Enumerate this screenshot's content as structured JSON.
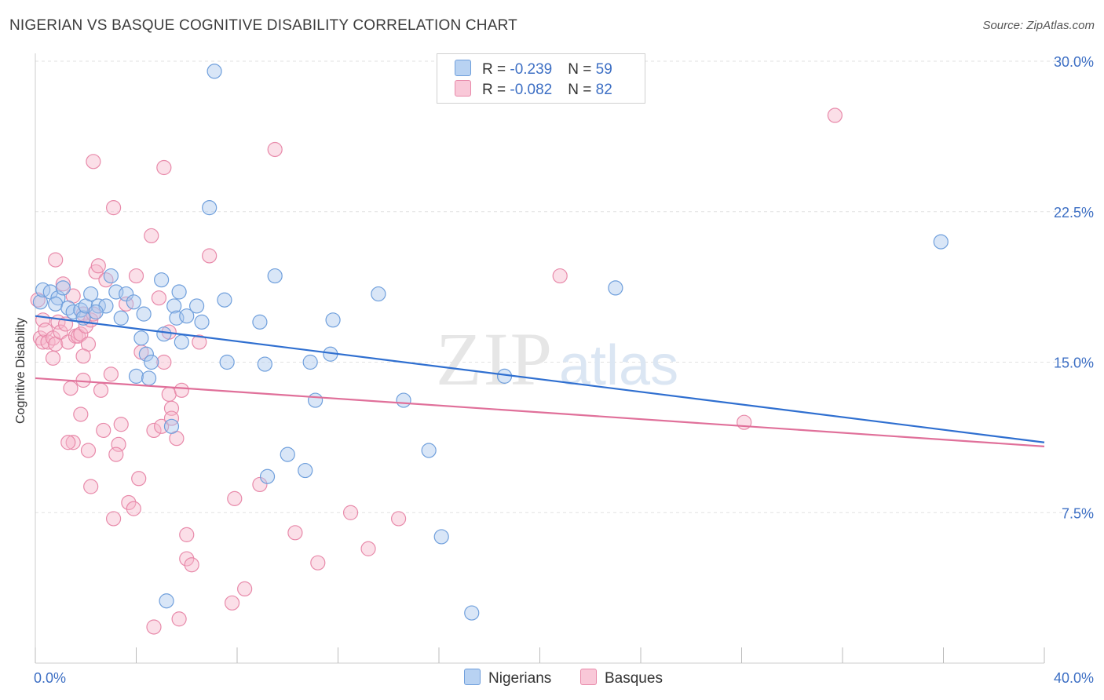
{
  "title": "NIGERIAN VS BASQUE COGNITIVE DISABILITY CORRELATION CHART",
  "source": "Source: ZipAtlas.com",
  "watermark": {
    "zip": "ZIP",
    "atlas": "atlas"
  },
  "colors": {
    "nigerians_fill": "#aac8ee",
    "nigerians_stroke": "#6f9fdc",
    "nigerians_line": "#2f6fd0",
    "basques_fill": "#f6b8cc",
    "basques_stroke": "#e88aaa",
    "basques_line": "#e0709a",
    "tick_label": "#3d6fc4",
    "grid": "#e2e2e2"
  },
  "legend": {
    "rows": [
      {
        "r_label": "R = ",
        "r_value": "-0.239",
        "n_label": "N = ",
        "n_value": "59"
      },
      {
        "r_label": "R = ",
        "r_value": "-0.082",
        "n_label": "N = ",
        "n_value": "82"
      }
    ]
  },
  "chart_data": {
    "type": "scatter",
    "title": "NIGERIAN VS BASQUE COGNITIVE DISABILITY CORRELATION CHART",
    "xlabel": "",
    "ylabel": "Cognitive Disability",
    "xlim": [
      0,
      40
    ],
    "ylim": [
      0,
      30
    ],
    "x_tick_labels": [
      "0.0%",
      "40.0%"
    ],
    "y_ticks": [
      7.5,
      15.0,
      22.5,
      30.0
    ],
    "y_tick_labels": [
      "7.5%",
      "15.0%",
      "22.5%",
      "30.0%"
    ],
    "grid": true,
    "legend_position": "top-center",
    "series": [
      {
        "name": "Nigerians",
        "R": -0.239,
        "N": 59,
        "trend": {
          "x": [
            0,
            40
          ],
          "y": [
            17.3,
            11.0
          ]
        },
        "points": [
          [
            0.2,
            18.0
          ],
          [
            0.3,
            18.6
          ],
          [
            0.6,
            18.5
          ],
          [
            0.9,
            18.2
          ],
          [
            0.8,
            17.9
          ],
          [
            1.3,
            17.7
          ],
          [
            1.5,
            17.5
          ],
          [
            1.8,
            17.6
          ],
          [
            1.9,
            17.2
          ],
          [
            1.1,
            18.7
          ],
          [
            2.0,
            17.8
          ],
          [
            2.2,
            18.4
          ],
          [
            2.5,
            17.8
          ],
          [
            2.8,
            17.8
          ],
          [
            2.4,
            17.5
          ],
          [
            3.2,
            18.5
          ],
          [
            3.4,
            17.2
          ],
          [
            3.0,
            19.3
          ],
          [
            3.6,
            18.4
          ],
          [
            3.9,
            18.0
          ],
          [
            4.3,
            17.4
          ],
          [
            4.4,
            15.4
          ],
          [
            4.2,
            16.2
          ],
          [
            4.6,
            15.0
          ],
          [
            4.0,
            14.3
          ],
          [
            4.5,
            14.2
          ],
          [
            5.0,
            19.1
          ],
          [
            5.1,
            16.4
          ],
          [
            5.7,
            18.5
          ],
          [
            5.5,
            17.8
          ],
          [
            5.6,
            17.2
          ],
          [
            5.8,
            16.0
          ],
          [
            6.0,
            17.3
          ],
          [
            6.4,
            17.8
          ],
          [
            6.6,
            17.0
          ],
          [
            6.9,
            22.7
          ],
          [
            7.1,
            29.5
          ],
          [
            7.5,
            18.1
          ],
          [
            7.6,
            15.0
          ],
          [
            8.9,
            17.0
          ],
          [
            9.1,
            14.9
          ],
          [
            9.5,
            19.3
          ],
          [
            10.0,
            10.4
          ],
          [
            10.7,
            9.6
          ],
          [
            10.9,
            15.0
          ],
          [
            11.1,
            13.1
          ],
          [
            11.7,
            15.4
          ],
          [
            11.8,
            17.1
          ],
          [
            13.6,
            18.4
          ],
          [
            14.6,
            13.1
          ],
          [
            15.6,
            10.6
          ],
          [
            16.1,
            6.3
          ],
          [
            17.3,
            2.5
          ],
          [
            18.6,
            14.3
          ],
          [
            23.0,
            18.7
          ],
          [
            35.9,
            21.0
          ],
          [
            9.2,
            9.3
          ],
          [
            5.2,
            3.1
          ],
          [
            5.4,
            11.8
          ]
        ]
      },
      {
        "name": "Basques",
        "R": -0.082,
        "N": 82,
        "trend": {
          "x": [
            0,
            40
          ],
          "y": [
            14.2,
            10.8
          ]
        },
        "points": [
          [
            0.1,
            18.1
          ],
          [
            0.2,
            16.2
          ],
          [
            0.3,
            16.0
          ],
          [
            0.3,
            17.1
          ],
          [
            0.4,
            16.6
          ],
          [
            0.5,
            16.0
          ],
          [
            0.7,
            16.2
          ],
          [
            0.8,
            15.9
          ],
          [
            0.9,
            17.0
          ],
          [
            0.7,
            15.2
          ],
          [
            0.8,
            20.1
          ],
          [
            1.0,
            16.5
          ],
          [
            1.1,
            18.9
          ],
          [
            1.2,
            16.9
          ],
          [
            1.3,
            16.0
          ],
          [
            1.4,
            13.7
          ],
          [
            1.5,
            18.3
          ],
          [
            1.6,
            16.3
          ],
          [
            1.7,
            16.3
          ],
          [
            1.8,
            16.4
          ],
          [
            1.9,
            17.4
          ],
          [
            2.0,
            16.8
          ],
          [
            1.8,
            12.4
          ],
          [
            1.9,
            14.1
          ],
          [
            1.5,
            11.0
          ],
          [
            1.3,
            11.0
          ],
          [
            2.1,
            15.9
          ],
          [
            2.2,
            17.1
          ],
          [
            1.9,
            15.3
          ],
          [
            2.3,
            17.4
          ],
          [
            2.1,
            10.6
          ],
          [
            2.2,
            8.8
          ],
          [
            2.3,
            25.0
          ],
          [
            2.4,
            19.5
          ],
          [
            2.5,
            19.8
          ],
          [
            2.6,
            13.6
          ],
          [
            2.7,
            11.6
          ],
          [
            2.8,
            19.1
          ],
          [
            3.0,
            14.4
          ],
          [
            3.1,
            22.7
          ],
          [
            3.1,
            7.2
          ],
          [
            3.3,
            10.9
          ],
          [
            3.2,
            10.4
          ],
          [
            3.4,
            11.9
          ],
          [
            3.6,
            17.9
          ],
          [
            3.7,
            8.0
          ],
          [
            3.9,
            7.7
          ],
          [
            4.0,
            19.3
          ],
          [
            4.1,
            9.2
          ],
          [
            4.2,
            15.5
          ],
          [
            4.6,
            21.3
          ],
          [
            4.7,
            1.8
          ],
          [
            4.7,
            11.6
          ],
          [
            4.9,
            18.2
          ],
          [
            5.0,
            11.8
          ],
          [
            5.1,
            15.0
          ],
          [
            5.1,
            24.7
          ],
          [
            5.3,
            16.5
          ],
          [
            5.3,
            13.4
          ],
          [
            5.4,
            12.7
          ],
          [
            5.4,
            12.2
          ],
          [
            5.6,
            11.2
          ],
          [
            5.7,
            2.2
          ],
          [
            5.8,
            13.6
          ],
          [
            6.0,
            5.2
          ],
          [
            6.0,
            6.4
          ],
          [
            6.2,
            4.9
          ],
          [
            6.5,
            16.0
          ],
          [
            6.9,
            20.3
          ],
          [
            7.8,
            3.0
          ],
          [
            7.9,
            8.2
          ],
          [
            8.3,
            3.7
          ],
          [
            8.9,
            8.9
          ],
          [
            9.5,
            25.6
          ],
          [
            10.3,
            6.5
          ],
          [
            11.2,
            5.0
          ],
          [
            12.5,
            7.5
          ],
          [
            13.2,
            5.7
          ],
          [
            14.4,
            7.2
          ],
          [
            20.8,
            19.3
          ],
          [
            28.1,
            12.0
          ],
          [
            31.7,
            27.3
          ]
        ]
      }
    ]
  },
  "bottom_legend": [
    {
      "label": "Nigerians"
    },
    {
      "label": "Basques"
    }
  ]
}
